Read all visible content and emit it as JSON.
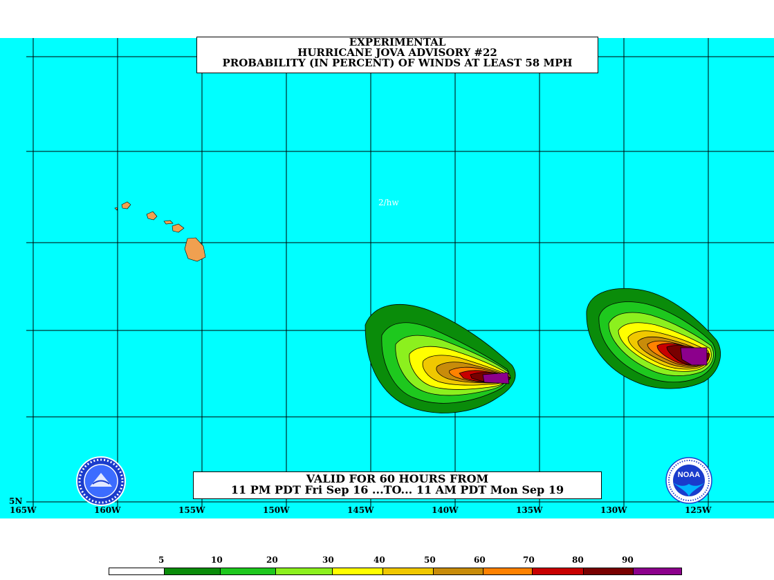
{
  "title": {
    "line1": "EXPERIMENTAL",
    "line2": "HURRICANE JOVA ADVISORY #22",
    "line3": "PROBABILITY (IN PERCENT) OF WINDS AT LEAST 58 MPH"
  },
  "valid": {
    "line1": "VALID FOR 60 HOURS FROM",
    "line2": "11 PM PDT Fri Sep 16 ...TO... 11 AM PDT Mon Sep 19"
  },
  "watermark": "2/hw",
  "lat_label": "5N",
  "lon_labels": [
    "165W",
    "160W",
    "155W",
    "150W",
    "145W",
    "140W",
    "135W",
    "130W",
    "125W"
  ],
  "legend": {
    "values": [
      "5",
      "10",
      "20",
      "30",
      "40",
      "50",
      "60",
      "70",
      "80",
      "90"
    ],
    "colors": [
      "#ffffff",
      "#0a8c0a",
      "#1ec81e",
      "#8cf01e",
      "#ffff00",
      "#f0c800",
      "#c88c0a",
      "#ff8200",
      "#c80000",
      "#780000",
      "#8c008c"
    ]
  },
  "colors": {
    "ocean": "#00ffff",
    "land": "#f0a050",
    "grid": "#000000"
  },
  "logos": {
    "left": "nws-logo",
    "right": "noaa-logo",
    "noaa_text": "NOAA"
  }
}
